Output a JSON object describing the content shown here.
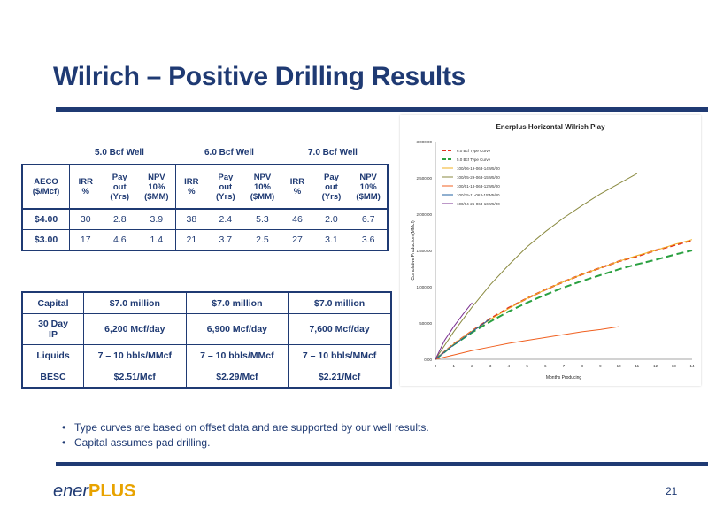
{
  "slide": {
    "title": "Wilrich – Positive Drilling Results",
    "page_number": "21",
    "logo": {
      "part1": "ener",
      "part2": "PLUS"
    }
  },
  "economics_table": {
    "group_headers": [
      "5.0 Bcf Well",
      "6.0 Bcf Well",
      "7.0 Bcf Well"
    ],
    "columns": [
      "AECO ($/Mcf)",
      "IRR %",
      "Pay out (Yrs)",
      "NPV 10% ($MM)",
      "IRR %",
      "Pay out (Yrs)",
      "NPV 10% ($MM)",
      "IRR %",
      "Pay out (Yrs)",
      "NPV 10% ($MM)"
    ],
    "header_lines": [
      [
        "AECO",
        "($/Mcf)"
      ],
      [
        "IRR",
        "%"
      ],
      [
        "Pay",
        "out",
        "(Yrs)"
      ],
      [
        "NPV",
        "10%",
        "($MM)"
      ],
      [
        "IRR",
        "%"
      ],
      [
        "Pay",
        "out",
        "(Yrs)"
      ],
      [
        "NPV",
        "10%",
        "($MM)"
      ],
      [
        "IRR",
        "%"
      ],
      [
        "Pay",
        "out",
        "(Yrs)"
      ],
      [
        "NPV",
        "10%",
        "($MM)"
      ]
    ],
    "rows": [
      [
        "$4.00",
        "30",
        "2.8",
        "3.9",
        "38",
        "2.4",
        "5.3",
        "46",
        "2.0",
        "6.7"
      ],
      [
        "$3.00",
        "17",
        "4.6",
        "1.4",
        "21",
        "3.7",
        "2.5",
        "27",
        "3.1",
        "3.6"
      ]
    ]
  },
  "capital_table": {
    "rows": [
      [
        "Capital",
        "$7.0 million",
        "$7.0 million",
        "$7.0 million"
      ],
      [
        "30 Day IP",
        "6,200 Mcf/day",
        "6,900 Mcf/day",
        "7,600 Mcf/day"
      ],
      [
        "Liquids",
        "7 – 10 bbls/MMcf",
        "7 – 10 bbls/MMcf",
        "7 – 10 bbls/MMcf"
      ],
      [
        "BESC",
        "$2.51/Mcf",
        "$2.29/Mcf",
        "$2.21/Mcf"
      ]
    ],
    "row_label_lines": [
      [
        "Capital"
      ],
      [
        "30 Day",
        "IP"
      ],
      [
        "Liquids"
      ],
      [
        "BESC"
      ]
    ]
  },
  "bullets": [
    "Type curves are based on offset data and are supported by our well results.",
    "Capital assumes pad drilling."
  ],
  "chart_data": {
    "type": "line",
    "title": "Enerplus Horizontal Wilrich Play",
    "xlabel": "Months Producing",
    "ylabel": "Cumulative Production (MMcf)",
    "xlim": [
      0,
      14
    ],
    "ylim": [
      0,
      3000
    ],
    "x_ticks": [
      "0",
      "1",
      "2",
      "3",
      "4",
      "5",
      "6",
      "7",
      "8",
      "9",
      "10",
      "11",
      "12",
      "13",
      "14"
    ],
    "y_ticks": [
      "0.00",
      "500.00",
      "1,000.00",
      "1,500.00",
      "2,000.00",
      "2,500.00",
      "3,000.00"
    ],
    "legend_position": "top-left",
    "grid": false,
    "series": [
      {
        "name": "6.0 Bcf Type Curve",
        "color": "#e03020",
        "dash": "6,3",
        "x": [
          0,
          1,
          2,
          3,
          4,
          5,
          6,
          7,
          8,
          9,
          10,
          11,
          12,
          13,
          14
        ],
        "y": [
          0,
          210,
          390,
          560,
          710,
          840,
          960,
          1070,
          1170,
          1260,
          1350,
          1420,
          1500,
          1570,
          1640
        ]
      },
      {
        "name": "5.0 Bcf Type Curve",
        "color": "#2aa040",
        "dash": "8,4",
        "x": [
          0,
          1,
          2,
          3,
          4,
          5,
          6,
          7,
          8,
          9,
          10,
          11,
          12,
          13,
          14
        ],
        "y": [
          0,
          200,
          370,
          520,
          660,
          780,
          890,
          990,
          1080,
          1160,
          1240,
          1310,
          1370,
          1440,
          1500
        ]
      },
      {
        "name": "100/06-19-063-14W5/00",
        "color": "#f0b020",
        "dash": "",
        "x": [
          0,
          1,
          2,
          3,
          4,
          5,
          6,
          7,
          8,
          9,
          10,
          11,
          12,
          13,
          14
        ],
        "y": [
          0,
          210,
          390,
          550,
          700,
          840,
          960,
          1070,
          1170,
          1260,
          1350,
          1430,
          1500,
          1580,
          1650
        ]
      },
      {
        "name": "100/05-29-063-15W5/00",
        "color": "#8a8a40",
        "dash": "",
        "x": [
          0,
          1,
          2,
          3,
          4,
          5,
          6,
          7,
          8,
          9,
          10,
          11
        ],
        "y": [
          0,
          380,
          720,
          1030,
          1300,
          1550,
          1760,
          1950,
          2120,
          2280,
          2420,
          2560
        ]
      },
      {
        "name": "100/01-18-063-12W5/00",
        "color": "#f06020",
        "dash": "",
        "x": [
          0,
          1,
          2,
          3,
          4,
          5,
          6,
          7,
          8,
          9,
          10
        ],
        "y": [
          0,
          60,
          120,
          170,
          220,
          260,
          300,
          340,
          380,
          410,
          450
        ]
      },
      {
        "name": "100/15-11-063-15W5/00",
        "color": "#2060a0",
        "dash": "",
        "x": [
          0,
          1,
          2,
          3
        ],
        "y": [
          0,
          200,
          380,
          560
        ]
      },
      {
        "name": "100/04-26-063-16W5/00",
        "color": "#7a3090",
        "dash": "",
        "x": [
          0,
          0.5,
          1,
          1.5,
          2
        ],
        "y": [
          0,
          260,
          450,
          620,
          780
        ]
      }
    ]
  }
}
